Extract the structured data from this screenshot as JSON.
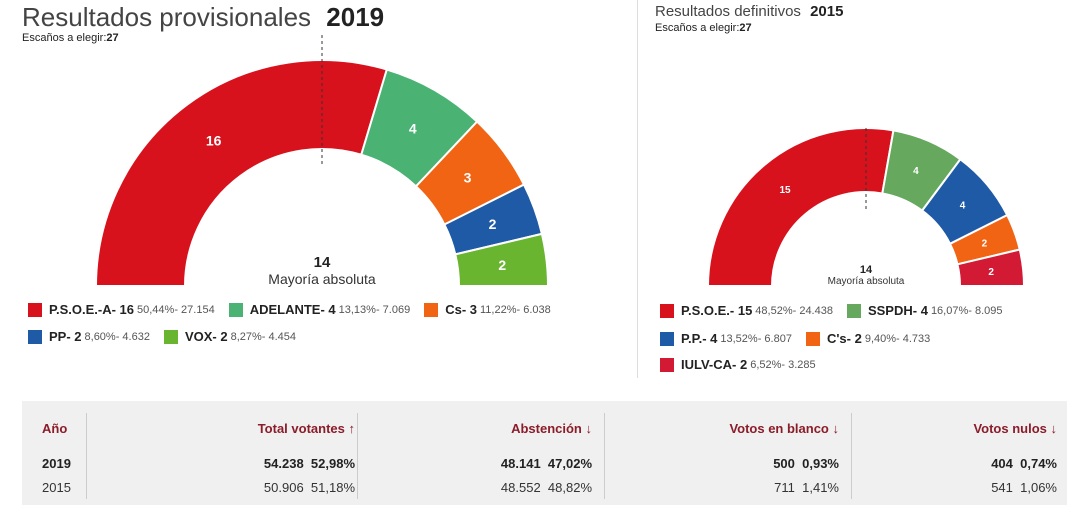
{
  "left": {
    "title": "Resultados provisionales",
    "year": "2019",
    "subtitle_label": "Escaños a elegir:",
    "subtitle_value": "27",
    "majority_number": "14",
    "majority_label": "Mayoría absoluta"
  },
  "right": {
    "title": "Resultados definitivos",
    "year": "2015",
    "subtitle_label": "Escaños a elegir:",
    "subtitle_value": "27",
    "majority_number": "14",
    "majority_label": "Mayoría absoluta"
  },
  "chart_data": [
    {
      "type": "pie",
      "title": "Resultados provisionales 2019",
      "total_seats": 27,
      "series": [
        {
          "name": "P.S.O.E.-A",
          "seats": 16,
          "pct": "50,44%",
          "votes": "27.154",
          "color": "#d8121d"
        },
        {
          "name": "ADELANTE",
          "seats": 4,
          "pct": "13,13%",
          "votes": "7.069",
          "color": "#4ab273"
        },
        {
          "name": "Cs",
          "seats": 3,
          "pct": "11,22%",
          "votes": "6.038",
          "color": "#f06414"
        },
        {
          "name": "PP",
          "seats": 2,
          "pct": "8,60%",
          "votes": "4.632",
          "color": "#1f5aa6"
        },
        {
          "name": "VOX",
          "seats": 2,
          "pct": "8,27%",
          "votes": "4.454",
          "color": "#6ab52f"
        }
      ]
    },
    {
      "type": "pie",
      "title": "Resultados definitivos 2015",
      "total_seats": 27,
      "series": [
        {
          "name": "P.S.O.E.",
          "seats": 15,
          "pct": "48,52%",
          "votes": "24.438",
          "color": "#d8121d"
        },
        {
          "name": "SSPDH",
          "seats": 4,
          "pct": "16,07%",
          "votes": "8.095",
          "color": "#65a85e"
        },
        {
          "name": "P.P.",
          "seats": 4,
          "pct": "13,52%",
          "votes": "6.807",
          "color": "#1f5aa6"
        },
        {
          "name": "C's",
          "seats": 2,
          "pct": "9,40%",
          "votes": "4.733",
          "color": "#f06414"
        },
        {
          "name": "IULV-CA",
          "seats": 2,
          "pct": "6,52%",
          "votes": "3.285",
          "color": "#d21a35"
        }
      ]
    }
  ],
  "legend_left": [
    {
      "label": "P.S.O.E.-A- 16",
      "stats": "50,44%- 27.154",
      "color": "#d8121d"
    },
    {
      "label": "ADELANTE- 4",
      "stats": "13,13%- 7.069",
      "color": "#4ab273"
    },
    {
      "label": "Cs- 3",
      "stats": "11,22%- 6.038",
      "color": "#f06414"
    },
    {
      "label": "PP- 2",
      "stats": "8,60%- 4.632",
      "color": "#1f5aa6"
    },
    {
      "label": "VOX- 2",
      "stats": "8,27%- 4.454",
      "color": "#6ab52f"
    }
  ],
  "legend_right": [
    {
      "label": "P.S.O.E.- 15",
      "stats": "48,52%- 24.438",
      "color": "#d8121d"
    },
    {
      "label": "SSPDH- 4",
      "stats": "16,07%- 8.095",
      "color": "#65a85e"
    },
    {
      "label": "P.P.- 4",
      "stats": "13,52%- 6.807",
      "color": "#1f5aa6"
    },
    {
      "label": "C's- 2",
      "stats": "9,40%- 4.733",
      "color": "#f06414"
    },
    {
      "label": "IULV-CA- 2",
      "stats": "6,52%- 3.285",
      "color": "#d21a35"
    }
  ],
  "table": {
    "headers": {
      "year": "Año",
      "total": "Total votantes",
      "abstention": "Abstención",
      "blank": "Votos en blanco",
      "null": "Votos nulos"
    },
    "arrows": {
      "total": "↑",
      "abstention": "↓",
      "blank": "↓",
      "null": "↓"
    },
    "rows": [
      {
        "year": "2019",
        "total": "54.238",
        "total_pct": "52,98%",
        "abs": "48.141",
        "abs_pct": "47,02%",
        "blank": "500",
        "blank_pct": "0,93%",
        "null": "404",
        "null_pct": "0,74%"
      },
      {
        "year": "2015",
        "total": "50.906",
        "total_pct": "51,18%",
        "abs": "48.552",
        "abs_pct": "48,82%",
        "blank": "711",
        "blank_pct": "1,41%",
        "null": "541",
        "null_pct": "1,06%"
      }
    ]
  }
}
